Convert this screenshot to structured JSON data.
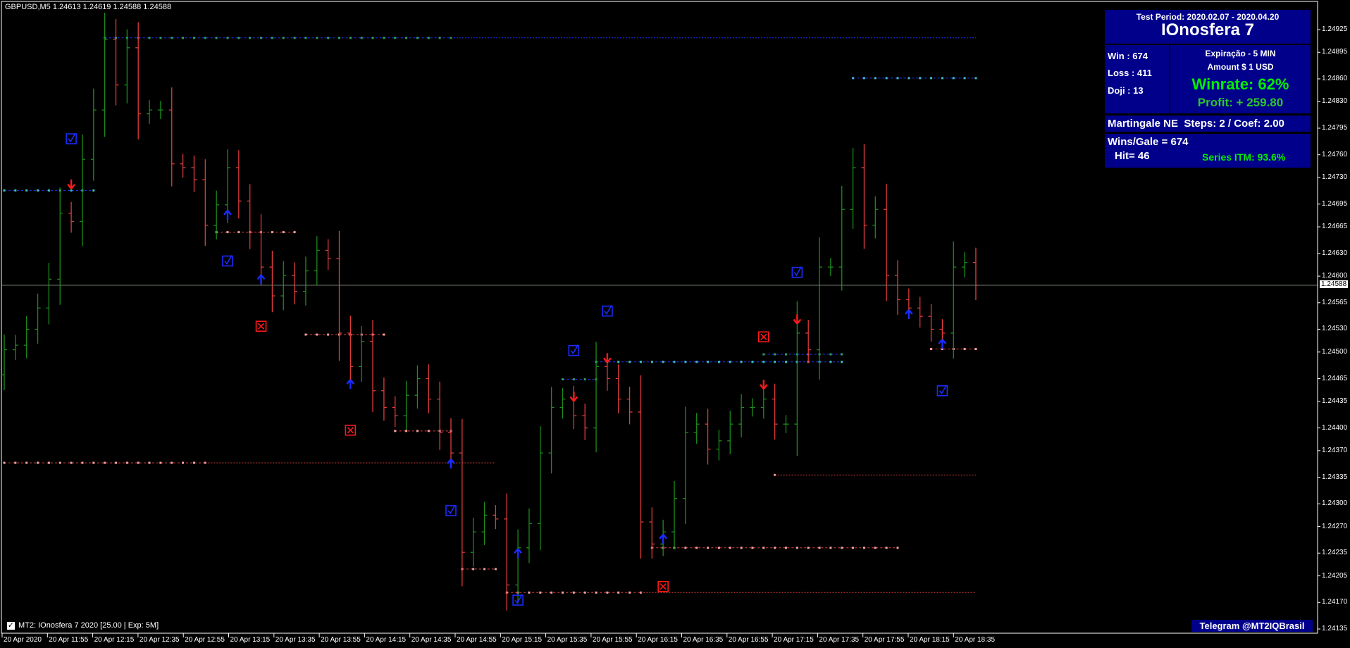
{
  "header": {
    "symbol_info": "GBPUSD,M5  1.24613 1.24619 1.24588 1.24588"
  },
  "panel": {
    "test_period": "Test Period: 2020.02.07 - 2020.04.20",
    "name": "IOnosfera 7",
    "win": "Win   : 674",
    "loss": "Loss : 411",
    "doji": "Doji   : 13",
    "expiration": "Expiração - 5 MIN",
    "amount": "Amount    $  1 USD",
    "winrate": "Winrate: 62%",
    "profit": "Profit: + 259.80",
    "martingale": "Martingale NE  Steps: 2 / Coef: 2.00",
    "wins_gale": "Wins/Gale = 674",
    "hit": "Hit= 46",
    "series_itm": "Series ITM: 93.6%"
  },
  "indicator_label": "MT2: IOnosfera 7 2020 [25.00 | Exp: 5M]",
  "indicator_checked": true,
  "telegram": "Telegram @MT2IQBrasil",
  "colors": {
    "bull": "#1c8c1c",
    "bear": "#e03c3c",
    "panel": "#00008b",
    "win_arrow": "#1a2cff",
    "loss_arrow": "#ff1a1a"
  },
  "chart_data": {
    "type": "ohlc-bar",
    "symbol": "GBPUSD",
    "timeframe": "M5",
    "current_price": "1.24588",
    "y_ticks": [
      "1.24925",
      "1.24895",
      "1.24860",
      "1.24830",
      "1.24795",
      "1.24760",
      "1.24730",
      "1.24695",
      "1.24665",
      "1.24630",
      "1.24600",
      "1.24565",
      "1.24530",
      "1.24500",
      "1.24465",
      "1.24435",
      "1.24400",
      "1.24370",
      "1.24335",
      "1.24300",
      "1.24270",
      "1.24235",
      "1.24205",
      "1.24170",
      "1.24135"
    ],
    "x_ticks": [
      "20 Apr 2020",
      "20 Apr 11:55",
      "20 Apr 12:15",
      "20 Apr 12:35",
      "20 Apr 12:55",
      "20 Apr 13:15",
      "20 Apr 13:35",
      "20 Apr 13:55",
      "20 Apr 14:15",
      "20 Apr 14:35",
      "20 Apr 14:55",
      "20 Apr 15:15",
      "20 Apr 15:35",
      "20 Apr 15:55",
      "20 Apr 16:15",
      "20 Apr 16:35",
      "20 Apr 16:55",
      "20 Apr 17:15",
      "20 Apr 17:35",
      "20 Apr 17:55",
      "20 Apr 18:15",
      "20 Apr 18:35"
    ],
    "first_open": 1.2447,
    "close": [
      1.24503,
      1.24509,
      1.2453,
      1.24558,
      1.24596,
      1.24683,
      1.24672,
      1.24754,
      1.24819,
      1.24912,
      1.24852,
      1.24901,
      1.24814,
      1.24819,
      1.24819,
      1.24748,
      1.24743,
      1.24727,
      1.24667,
      1.24694,
      1.24743,
      1.24699,
      1.24658,
      1.24612,
      1.24574,
      1.24601,
      1.2458,
      1.24607,
      1.24634,
      1.24623,
      1.24525,
      1.24481,
      1.24514,
      1.24449,
      1.24427,
      1.24416,
      1.24443,
      1.24465,
      1.24438,
      1.24394,
      1.24367,
      1.24236,
      1.24263,
      1.24285,
      1.2428,
      1.24193,
      1.24242,
      1.24274,
      1.24367,
      1.24427,
      1.24438,
      1.24416,
      1.244,
      1.24481,
      1.24465,
      1.24438,
      1.24421,
      1.24276,
      1.24247,
      1.24263,
      1.24307,
      1.24394,
      1.24405,
      1.24372,
      1.24383,
      1.24405,
      1.24427,
      1.24427,
      1.24438,
      1.24405,
      1.24405,
      1.24525,
      1.24503,
      1.24612,
      1.24612,
      1.24688,
      1.24743,
      1.24667,
      1.24688,
      1.24601,
      1.24569,
      1.24558,
      1.24547,
      1.2453,
      1.24525,
      1.24612,
      1.24618,
      1.24588
    ],
    "levels": [
      {
        "price": 1.24914,
        "from": 9,
        "to": 40,
        "extend_to": 87,
        "color": "#2233ff",
        "dot": "#2ca05a"
      },
      {
        "price": 1.24713,
        "from": 0,
        "to": 8,
        "color": "#2233ff",
        "dot": "#40c0c0"
      },
      {
        "price": 1.24658,
        "from": 19,
        "to": 26,
        "color": "#e04040",
        "dot": "#f0a0a0"
      },
      {
        "price": 1.24523,
        "from": 27,
        "to": 34,
        "color": "#e04040",
        "dot": "#f0a0a0"
      },
      {
        "price": 1.24396,
        "from": 35,
        "to": 40,
        "color": "#e04040",
        "dot": "#f0a0a0"
      },
      {
        "price": 1.24354,
        "from": 0,
        "to": 18,
        "extend_to": 44,
        "color": "#e04040",
        "dot": "#f0a0a0"
      },
      {
        "price": 1.24214,
        "from": 41,
        "to": 44,
        "color": "#e04040",
        "dot": "#f0a0a0"
      },
      {
        "price": 1.24183,
        "from": 45,
        "to": 57,
        "extend_to": 87,
        "color": "#e04040",
        "dot": "#f0a0a0"
      },
      {
        "price": 1.24464,
        "from": 50,
        "to": 53,
        "color": "#2233ff",
        "dot": "#2ca05a"
      },
      {
        "price": 1.24487,
        "from": 53,
        "to": 75,
        "color": "#2233ff",
        "dot": "#40c0c0"
      },
      {
        "price": 1.24497,
        "from": 68,
        "to": 75,
        "color": "#2233ff",
        "dot": "#2ca05a"
      },
      {
        "price": 1.24861,
        "from": 76,
        "to": 87,
        "color": "#2233ff",
        "dot": "#40c0c0"
      },
      {
        "price": 1.24242,
        "from": 58,
        "to": 80,
        "color": "#e04040",
        "dot": "#f0a0a0"
      },
      {
        "price": 1.24338,
        "from": 69,
        "to": 69,
        "extend_to": 87,
        "color": "#e04040",
        "dot": "#f0a0a0"
      },
      {
        "price": 1.24504,
        "from": 83,
        "to": 87,
        "color": "#e04040",
        "dot": "#f0a0a0"
      }
    ],
    "signals": [
      {
        "type": "sell-arrow",
        "bar": 6,
        "price": 1.24721
      },
      {
        "type": "sell-arrow",
        "bar": 51,
        "price": 1.24441
      },
      {
        "type": "sell-arrow",
        "bar": 54,
        "price": 1.24492
      },
      {
        "type": "sell-arrow",
        "bar": 68,
        "price": 1.24457
      },
      {
        "type": "sell-arrow",
        "bar": 71,
        "price": 1.24543
      },
      {
        "type": "buy-arrow",
        "bar": 20,
        "price": 1.24681
      },
      {
        "type": "buy-arrow",
        "bar": 23,
        "price": 1.24596
      },
      {
        "type": "buy-arrow",
        "bar": 31,
        "price": 1.24458
      },
      {
        "type": "buy-arrow",
        "bar": 40,
        "price": 1.24353
      },
      {
        "type": "buy-arrow",
        "bar": 46,
        "price": 1.24235
      },
      {
        "type": "buy-arrow",
        "bar": 59,
        "price": 1.24254
      },
      {
        "type": "buy-arrow",
        "bar": 81,
        "price": 1.2455
      },
      {
        "type": "buy-arrow",
        "bar": 84,
        "price": 1.24511
      },
      {
        "type": "win",
        "bar": 6,
        "price": 1.24781
      },
      {
        "type": "win",
        "bar": 20,
        "price": 1.2462
      },
      {
        "type": "win",
        "bar": 51,
        "price": 1.24502
      },
      {
        "type": "win",
        "bar": 54,
        "price": 1.24554
      },
      {
        "type": "win",
        "bar": 71,
        "price": 1.24605
      },
      {
        "type": "win",
        "bar": 40,
        "price": 1.24291
      },
      {
        "type": "win",
        "bar": 46,
        "price": 1.24173
      },
      {
        "type": "win",
        "bar": 84,
        "price": 1.24449
      },
      {
        "type": "loss",
        "bar": 23,
        "price": 1.24534
      },
      {
        "type": "loss",
        "bar": 31,
        "price": 1.24397
      },
      {
        "type": "loss",
        "bar": 68,
        "price": 1.2452
      },
      {
        "type": "loss",
        "bar": 59,
        "price": 1.24191
      }
    ]
  }
}
